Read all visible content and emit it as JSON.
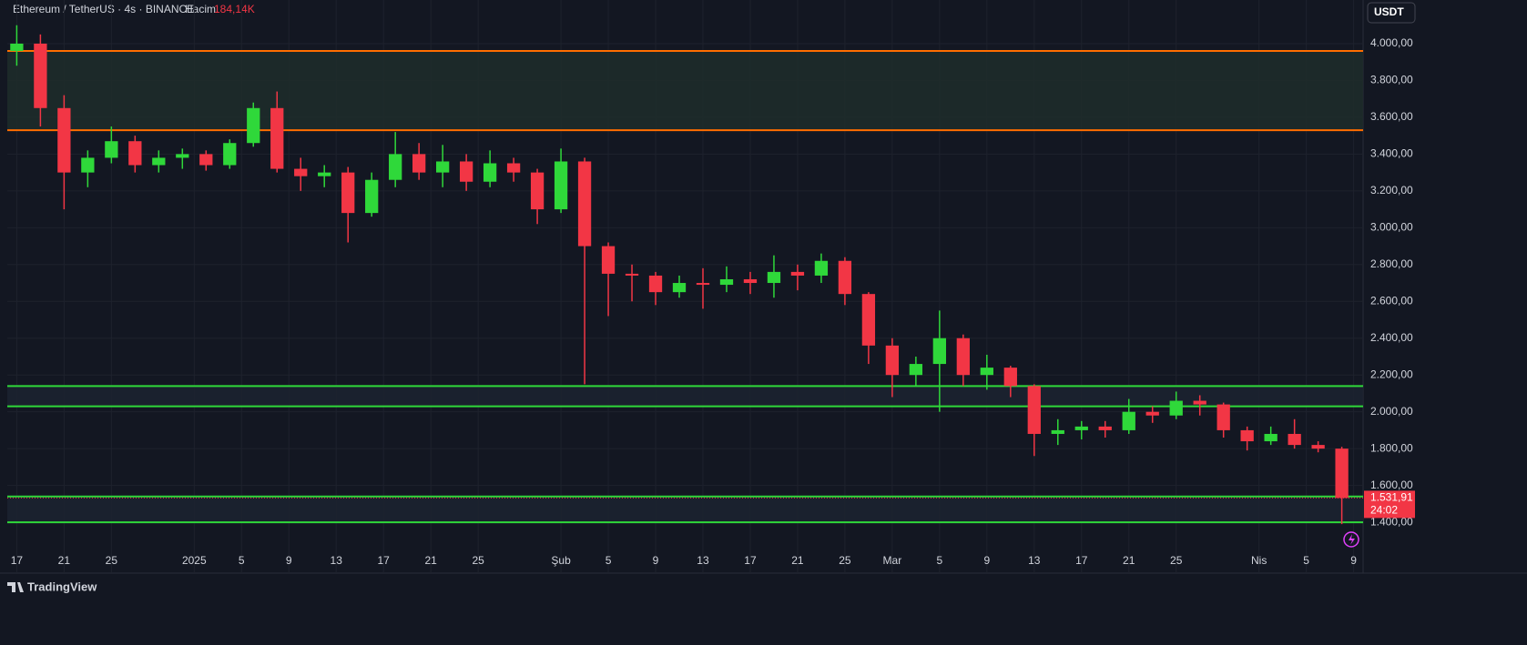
{
  "chart_data": {
    "type": "candlestick",
    "title": "Ethereum / TetherUS · 4s · BINANCE",
    "volume_label": "Hacim",
    "volume_value": "184,14K",
    "currency": "USDT",
    "last_price": {
      "value": 1531.91,
      "label": "1.531,91"
    },
    "countdown": "24:02",
    "brand": "TradingView",
    "up_color": "#2fd83a",
    "down_color": "#f23645",
    "grid": true,
    "ylim": [
      1272,
      4237
    ],
    "yticks": [
      {
        "value": 1400,
        "label": "1.400,00"
      },
      {
        "value": 1600,
        "label": "1.600,00"
      },
      {
        "value": 1800,
        "label": "1.800,00"
      },
      {
        "value": 2000,
        "label": "2.000,00"
      },
      {
        "value": 2200,
        "label": "2.200,00"
      },
      {
        "value": 2400,
        "label": "2.400,00"
      },
      {
        "value": 2600,
        "label": "2.600,00"
      },
      {
        "value": 2800,
        "label": "2.800,00"
      },
      {
        "value": 3000,
        "label": "3.000,00"
      },
      {
        "value": 3200,
        "label": "3.200,00"
      },
      {
        "value": 3400,
        "label": "3.400,00"
      },
      {
        "value": 3600,
        "label": "3.600,00"
      },
      {
        "value": 3800,
        "label": "3.800,00"
      },
      {
        "value": 4000,
        "label": "4.000,00"
      }
    ],
    "xlim": [
      -0.8,
      113.8
    ],
    "xticks": [
      {
        "value": 0,
        "label": "17"
      },
      {
        "value": 4,
        "label": "21"
      },
      {
        "value": 8,
        "label": "25"
      },
      {
        "value": 15,
        "label": "2025"
      },
      {
        "value": 19,
        "label": "5"
      },
      {
        "value": 23,
        "label": "9"
      },
      {
        "value": 27,
        "label": "13"
      },
      {
        "value": 31,
        "label": "17"
      },
      {
        "value": 35,
        "label": "21"
      },
      {
        "value": 39,
        "label": "25"
      },
      {
        "value": 46,
        "label": "Şub"
      },
      {
        "value": 50,
        "label": "5"
      },
      {
        "value": 54,
        "label": "9"
      },
      {
        "value": 58,
        "label": "13"
      },
      {
        "value": 62,
        "label": "17"
      },
      {
        "value": 66,
        "label": "21"
      },
      {
        "value": 70,
        "label": "25"
      },
      {
        "value": 74,
        "label": "Mar"
      },
      {
        "value": 78,
        "label": "5"
      },
      {
        "value": 82,
        "label": "9"
      },
      {
        "value": 86,
        "label": "13"
      },
      {
        "value": 90,
        "label": "17"
      },
      {
        "value": 94,
        "label": "21"
      },
      {
        "value": 98,
        "label": "25"
      },
      {
        "value": 105,
        "label": "Nis"
      },
      {
        "value": 109,
        "label": "5"
      },
      {
        "value": 113,
        "label": "9"
      }
    ],
    "levels": [
      {
        "value": 3960,
        "color": "#ff6d00"
      },
      {
        "value": 3530,
        "color": "#ff6d00"
      },
      {
        "value": 2140,
        "color": "#2fd83a"
      },
      {
        "value": 2030,
        "color": "#2fd83a"
      },
      {
        "value": 1540,
        "color": "#2fd83a"
      },
      {
        "value": 1400,
        "color": "#2fd83a"
      }
    ],
    "x": [
      0,
      2,
      4,
      6,
      8,
      10,
      12,
      14,
      16,
      18,
      20,
      22,
      24,
      26,
      28,
      30,
      32,
      34,
      36,
      38,
      40,
      42,
      44,
      46,
      48,
      50,
      52,
      54,
      56,
      58,
      60,
      62,
      64,
      66,
      68,
      70,
      72,
      74,
      76,
      78,
      80,
      82,
      84,
      86,
      88,
      90,
      92,
      94,
      96,
      98,
      100,
      102,
      104,
      106,
      108,
      110,
      112
    ],
    "open": [
      3960,
      4000,
      3650,
      3300,
      3380,
      3470,
      3340,
      3380,
      3400,
      3340,
      3460,
      3650,
      3320,
      3280,
      3300,
      3080,
      3260,
      3400,
      3300,
      3360,
      3250,
      3350,
      3300,
      3100,
      3360,
      2900,
      2750,
      2740,
      2650,
      2700,
      2690,
      2720,
      2700,
      2760,
      2740,
      2820,
      2640,
      2360,
      2200,
      2260,
      2400,
      2200,
      2240,
      2140,
      1880,
      1900,
      1920,
      1900,
      2000,
      1980,
      2060,
      2040,
      1900,
      1840,
      1880,
      1820,
      1800
    ],
    "high": [
      4100,
      4050,
      3720,
      3420,
      3550,
      3500,
      3420,
      3430,
      3420,
      3480,
      3680,
      3740,
      3380,
      3340,
      3330,
      3300,
      3520,
      3460,
      3450,
      3400,
      3420,
      3380,
      3320,
      3430,
      3380,
      2920,
      2800,
      2760,
      2740,
      2780,
      2790,
      2760,
      2850,
      2800,
      2860,
      2840,
      2650,
      2400,
      2300,
      2550,
      2420,
      2310,
      2250,
      2150,
      1960,
      1950,
      1950,
      2070,
      2030,
      2110,
      2090,
      2050,
      1920,
      1920,
      1960,
      1840,
      1810
    ],
    "low": [
      3880,
      3550,
      3100,
      3220,
      3350,
      3300,
      3300,
      3320,
      3310,
      3320,
      3440,
      3300,
      3200,
      3220,
      2920,
      3060,
      3220,
      3260,
      3220,
      3200,
      3220,
      3250,
      3020,
      3080,
      2150,
      2520,
      2600,
      2580,
      2620,
      2560,
      2650,
      2640,
      2620,
      2660,
      2700,
      2580,
      2260,
      2080,
      2140,
      2000,
      2140,
      2120,
      2080,
      1760,
      1820,
      1850,
      1860,
      1880,
      1940,
      1960,
      1980,
      1860,
      1790,
      1820,
      1800,
      1780,
      1390
    ],
    "close": [
      4000,
      3650,
      3300,
      3380,
      3470,
      3340,
      3380,
      3400,
      3340,
      3460,
      3650,
      3320,
      3280,
      3300,
      3080,
      3260,
      3400,
      3300,
      3360,
      3250,
      3350,
      3300,
      3100,
      3360,
      2900,
      2750,
      2740,
      2650,
      2700,
      2690,
      2720,
      2700,
      2760,
      2740,
      2820,
      2640,
      2360,
      2200,
      2260,
      2400,
      2200,
      2240,
      2140,
      1880,
      1900,
      1920,
      1900,
      2000,
      1980,
      2060,
      2040,
      1900,
      1840,
      1880,
      1820,
      1800,
      1532
    ]
  }
}
